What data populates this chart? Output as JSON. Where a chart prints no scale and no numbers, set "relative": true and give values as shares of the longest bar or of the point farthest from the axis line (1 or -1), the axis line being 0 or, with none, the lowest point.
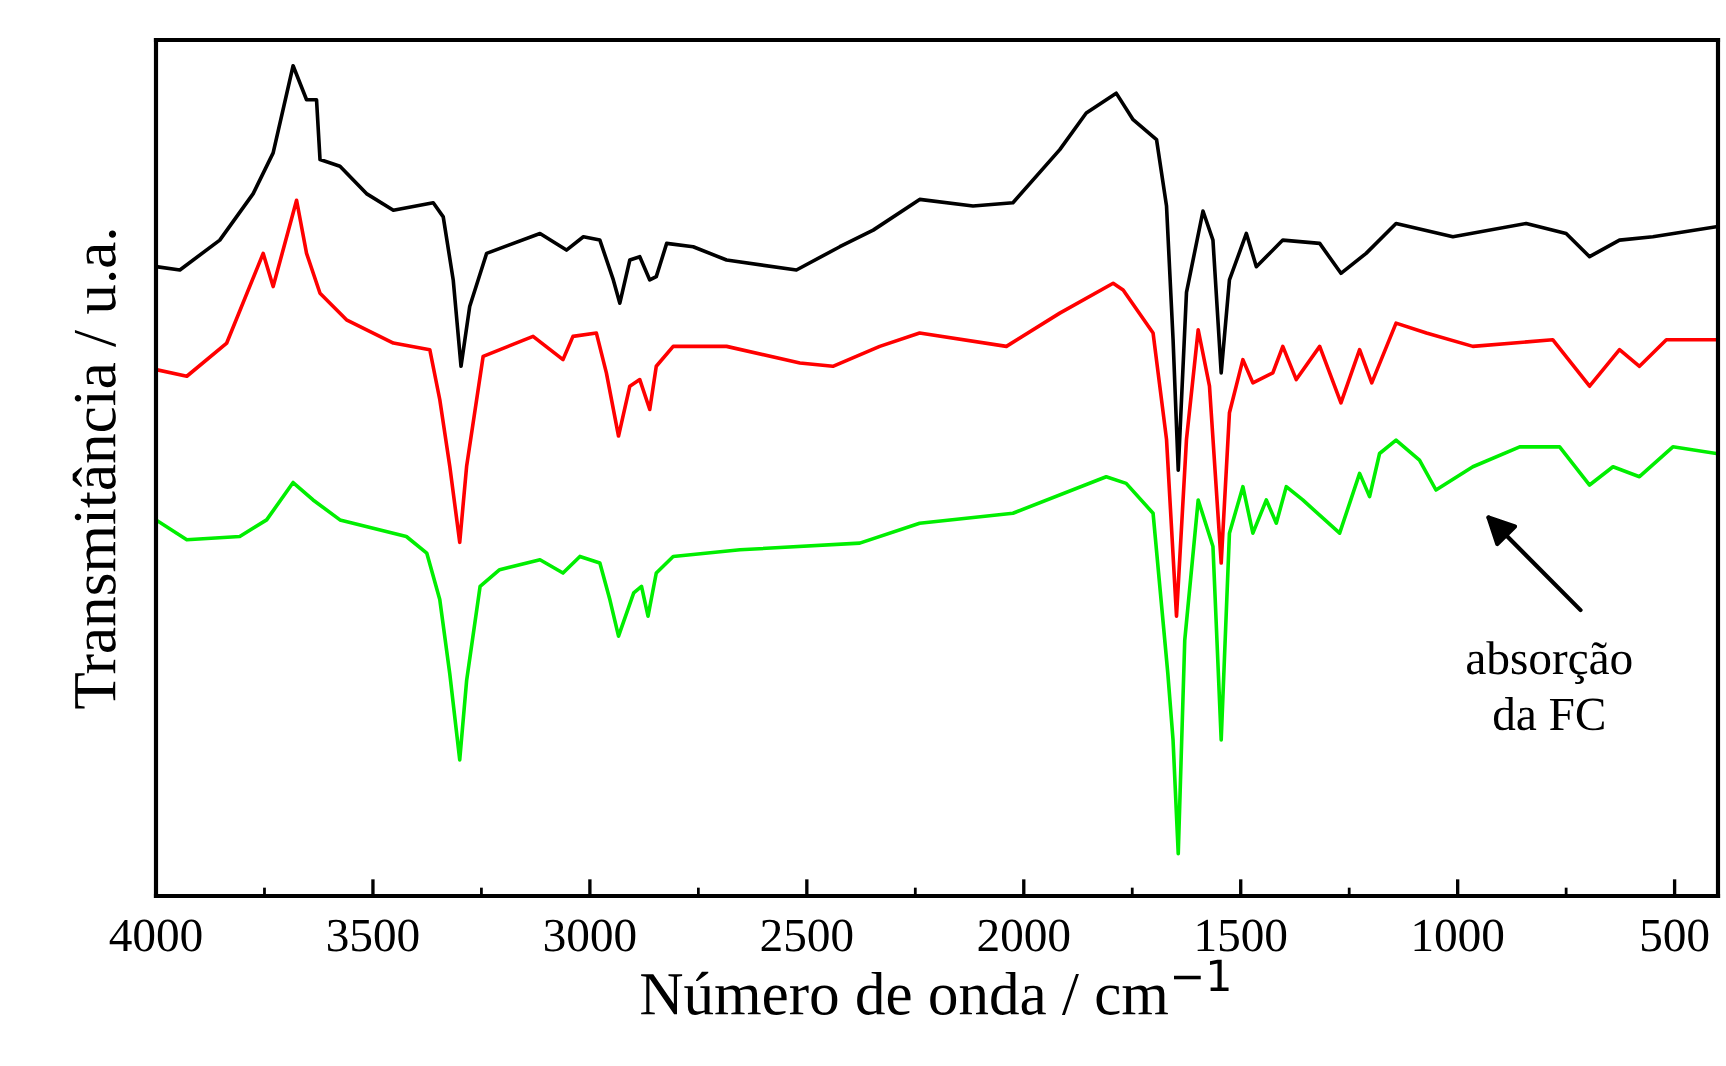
{
  "chart_data": {
    "type": "line",
    "xlabel": "Número de onda / cm$^{−1}$",
    "ylabel": "Transmitância / u.a.",
    "relative": true,
    "xlim": [
      4000,
      400
    ],
    "xticks": [
      4000,
      3500,
      3000,
      2500,
      2000,
      1500,
      1000,
      500
    ],
    "grid": false,
    "marker": "none",
    "line_style": "solid",
    "annotations": [
      "absorção\nda FC"
    ],
    "series": [
      {
        "color": "#000000",
        "x": [
          4000,
          3945,
          3853,
          3776,
          3730,
          3684,
          3653,
          3630,
          3622,
          3576,
          3515,
          3453,
          3361,
          3338,
          3315,
          3297,
          3277,
          3238,
          3115,
          3054,
          3015,
          2977,
          2946,
          2931,
          2908,
          2885,
          2862,
          2847,
          2823,
          2762,
          2685,
          2524,
          2424,
          2347,
          2240,
          2117,
          2025,
          1917,
          1856,
          1787,
          1748,
          1694,
          1671,
          1656,
          1644,
          1625,
          1587,
          1564,
          1545,
          1526,
          1487,
          1464,
          1403,
          1318,
          1269,
          1211,
          1142,
          1011,
          842,
          750,
          696,
          627,
          550,
          404
        ],
        "values": [
          0.758,
          0.754,
          0.79,
          0.846,
          0.895,
          1.0,
          0.959,
          0.959,
          0.887,
          0.879,
          0.846,
          0.826,
          0.835,
          0.818,
          0.742,
          0.638,
          0.71,
          0.774,
          0.798,
          0.778,
          0.794,
          0.79,
          0.742,
          0.714,
          0.766,
          0.77,
          0.742,
          0.746,
          0.786,
          0.782,
          0.766,
          0.754,
          0.782,
          0.802,
          0.839,
          0.831,
          0.835,
          0.899,
          0.943,
          0.967,
          0.935,
          0.911,
          0.831,
          0.671,
          0.513,
          0.727,
          0.825,
          0.79,
          0.63,
          0.742,
          0.798,
          0.758,
          0.79,
          0.786,
          0.75,
          0.774,
          0.81,
          0.794,
          0.81,
          0.798,
          0.77,
          0.79,
          0.794,
          0.806
        ]
      },
      {
        "color": "#ff0000",
        "x": [
          4000,
          3929,
          3837,
          3753,
          3730,
          3676,
          3653,
          3622,
          3561,
          3453,
          3369,
          3346,
          3323,
          3300,
          3284,
          3246,
          3131,
          3062,
          3039,
          2985,
          2962,
          2934,
          2908,
          2885,
          2862,
          2847,
          2808,
          2685,
          2516,
          2440,
          2332,
          2240,
          2040,
          1917,
          1794,
          1771,
          1702,
          1671,
          1648,
          1625,
          1598,
          1572,
          1545,
          1526,
          1495,
          1472,
          1426,
          1403,
          1372,
          1318,
          1269,
          1226,
          1198,
          1142,
          1072,
          965,
          781,
          696,
          627,
          581,
          519,
          404
        ],
        "values": [
          0.634,
          0.626,
          0.666,
          0.774,
          0.734,
          0.838,
          0.774,
          0.726,
          0.694,
          0.666,
          0.658,
          0.598,
          0.518,
          0.426,
          0.518,
          0.65,
          0.674,
          0.646,
          0.674,
          0.678,
          0.63,
          0.554,
          0.614,
          0.622,
          0.586,
          0.638,
          0.662,
          0.662,
          0.642,
          0.638,
          0.662,
          0.678,
          0.662,
          0.702,
          0.738,
          0.73,
          0.678,
          0.55,
          0.337,
          0.55,
          0.682,
          0.614,
          0.401,
          0.582,
          0.646,
          0.618,
          0.63,
          0.662,
          0.622,
          0.662,
          0.594,
          0.658,
          0.618,
          0.69,
          0.678,
          0.662,
          0.67,
          0.614,
          0.658,
          0.638,
          0.67,
          0.67
        ]
      },
      {
        "color": "#00ee00",
        "x": [
          4000,
          3929,
          3807,
          3745,
          3684,
          3638,
          3576,
          3423,
          3376,
          3346,
          3323,
          3300,
          3284,
          3253,
          3208,
          3115,
          3062,
          3023,
          2977,
          2954,
          2934,
          2899,
          2881,
          2866,
          2847,
          2808,
          2654,
          2378,
          2240,
          2025,
          1810,
          1764,
          1702,
          1668,
          1656,
          1644,
          1629,
          1598,
          1564,
          1545,
          1526,
          1495,
          1472,
          1441,
          1418,
          1395,
          1357,
          1272,
          1226,
          1203,
          1180,
          1142,
          1088,
          1050,
          965,
          857,
          765,
          696,
          642,
          581,
          504,
          404
        ],
        "values": [
          0.453,
          0.429,
          0.433,
          0.453,
          0.498,
          0.477,
          0.453,
          0.433,
          0.413,
          0.357,
          0.268,
          0.164,
          0.26,
          0.373,
          0.393,
          0.405,
          0.389,
          0.409,
          0.401,
          0.357,
          0.313,
          0.365,
          0.373,
          0.337,
          0.389,
          0.409,
          0.417,
          0.425,
          0.449,
          0.461,
          0.505,
          0.497,
          0.461,
          0.268,
          0.188,
          0.051,
          0.308,
          0.477,
          0.421,
          0.188,
          0.437,
          0.493,
          0.437,
          0.477,
          0.449,
          0.493,
          0.477,
          0.437,
          0.509,
          0.481,
          0.533,
          0.549,
          0.525,
          0.489,
          0.517,
          0.541,
          0.541,
          0.495,
          0.517,
          0.505,
          0.541,
          0.533
        ]
      }
    ]
  }
}
